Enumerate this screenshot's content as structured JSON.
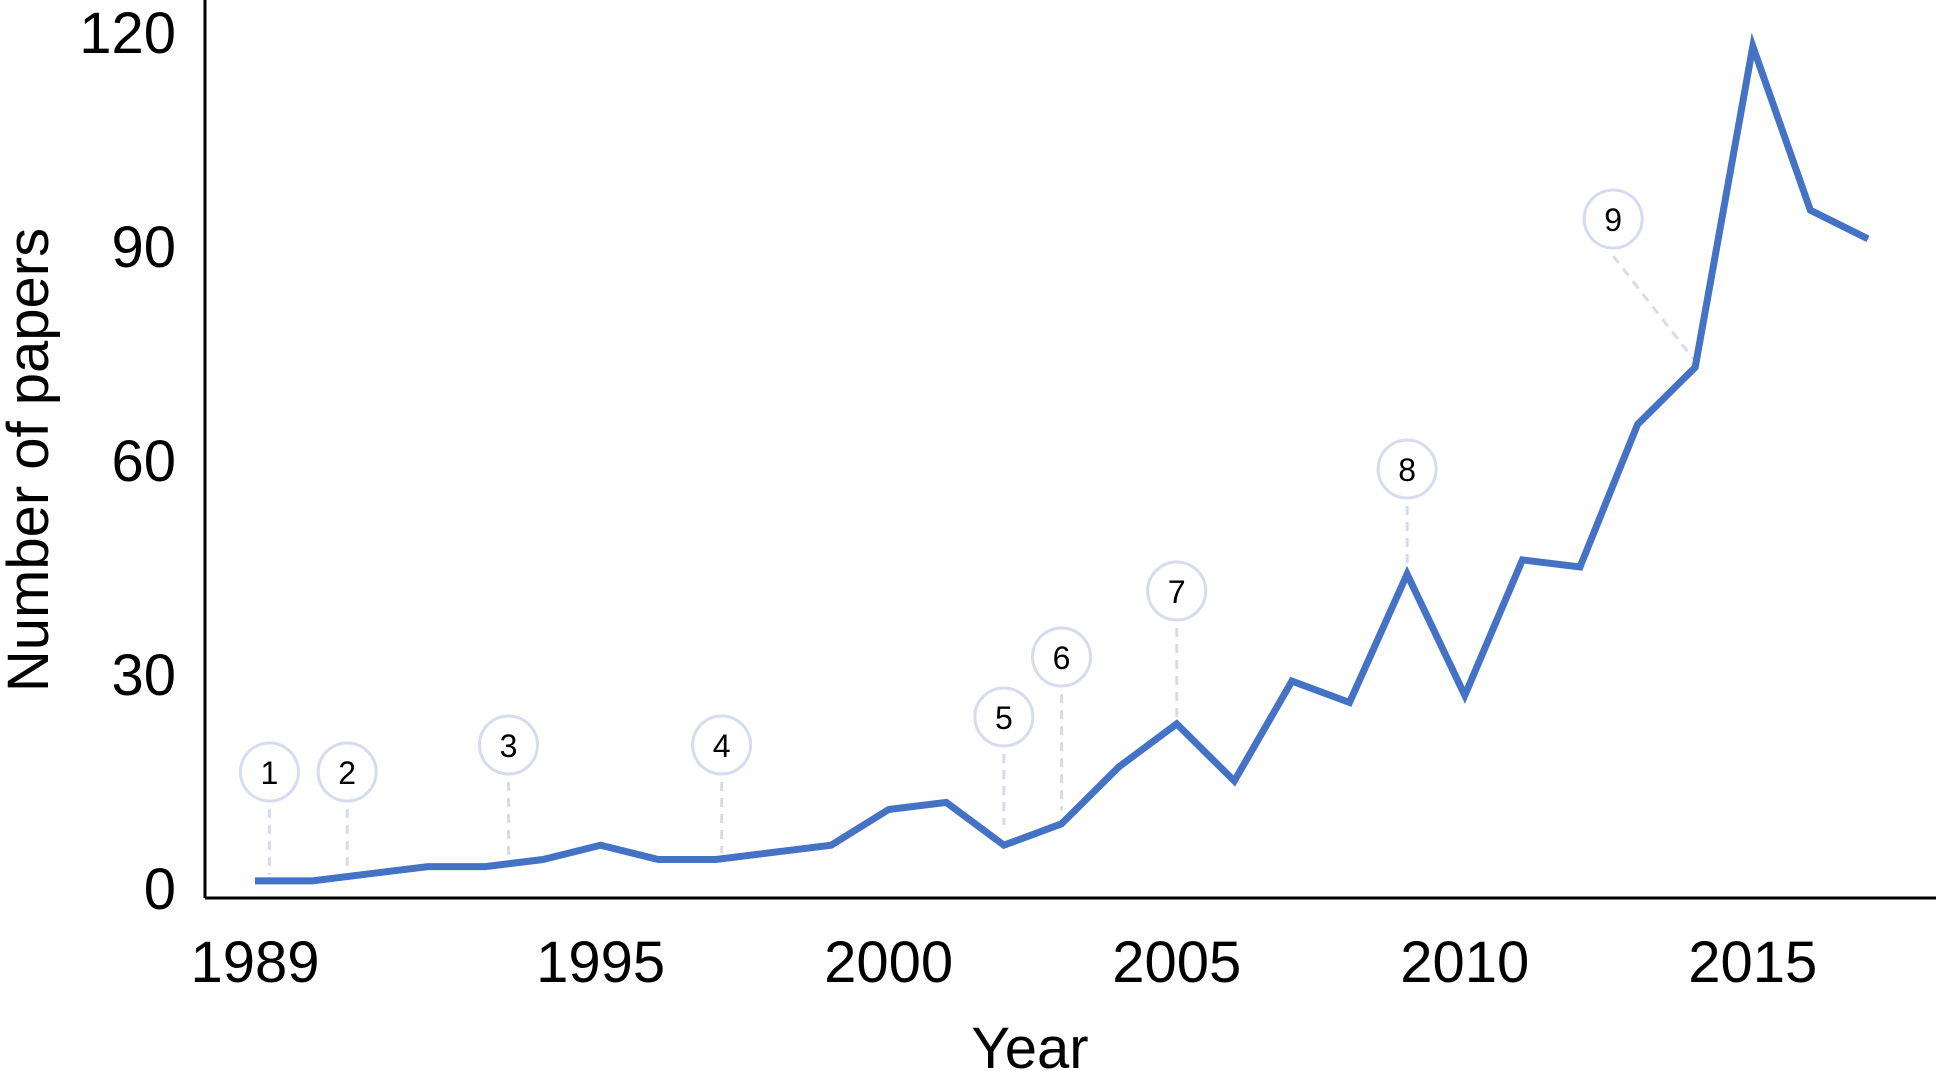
{
  "chart_data": {
    "type": "line",
    "title": "",
    "xlabel": "Year",
    "ylabel": "Number of papers",
    "xlim": [
      1989,
      2017
    ],
    "ylim": [
      0,
      120
    ],
    "x_ticks": [
      1989,
      1995,
      2000,
      2005,
      2010,
      2015
    ],
    "y_ticks": [
      0,
      30,
      60,
      90,
      120
    ],
    "grid": false,
    "legend": "none",
    "series": [
      {
        "color": "#4472C4",
        "x": [
          1989,
          1990,
          1991,
          1992,
          1993,
          1994,
          1995,
          1996,
          1997,
          1998,
          1999,
          2000,
          2001,
          2002,
          2003,
          2004,
          2005,
          2006,
          2007,
          2008,
          2009,
          2010,
          2011,
          2012,
          2013,
          2014,
          2015,
          2016,
          2017
        ],
        "values": [
          1,
          1,
          2,
          3,
          3,
          4,
          6,
          4,
          4,
          5,
          6,
          11,
          12,
          6,
          9,
          17,
          23,
          15,
          29,
          26,
          44,
          27,
          46,
          45,
          65,
          73,
          118,
          95,
          91
        ]
      }
    ],
    "annotations": [
      {
        "label": "1",
        "x": 1989.25,
        "y": 1
      },
      {
        "label": "2",
        "x": 1990.6,
        "y": 1.5
      },
      {
        "label": "3",
        "x": 1993.4,
        "y": 3.5
      },
      {
        "label": "4",
        "x": 1997.1,
        "y": 4
      },
      {
        "label": "5",
        "x": 2002,
        "y": 8
      },
      {
        "label": "6",
        "x": 2003,
        "y": 10
      },
      {
        "label": "7",
        "x": 2005,
        "y": 23
      },
      {
        "label": "8",
        "x": 2009,
        "y": 44
      },
      {
        "label": "9",
        "x": 2014,
        "y": 73
      }
    ],
    "marker_color": "#D6DCEE"
  }
}
